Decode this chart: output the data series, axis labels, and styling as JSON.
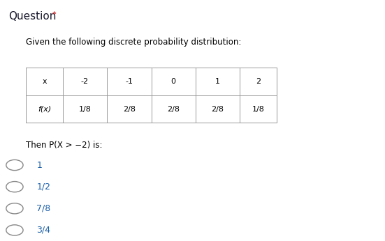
{
  "title": "Question",
  "title_asterisk": " *",
  "subtitle": "Given the following discrete probability distribution:",
  "table_headers": [
    "x",
    "-2",
    "-1",
    "0",
    "1",
    "2"
  ],
  "table_row1_label": "f(x)",
  "table_row1_values": [
    "1/8",
    "2/8",
    "2/8",
    "2/8",
    "1/8"
  ],
  "question_text": "Then P(X > −2) is:",
  "options": [
    "1",
    "1/2",
    "7/8",
    "3/4"
  ],
  "bg_color": "#ffffff",
  "text_color": "#000000",
  "title_color": "#1a1a2e",
  "asterisk_color": "#cc0000",
  "option_text_color": "#1a5fa8",
  "table_border_color": "#999999",
  "radio_color": "#888888",
  "font_size_title": 11,
  "font_size_subtitle": 8.5,
  "font_size_table": 8,
  "font_size_question": 8.5,
  "font_size_options": 9
}
